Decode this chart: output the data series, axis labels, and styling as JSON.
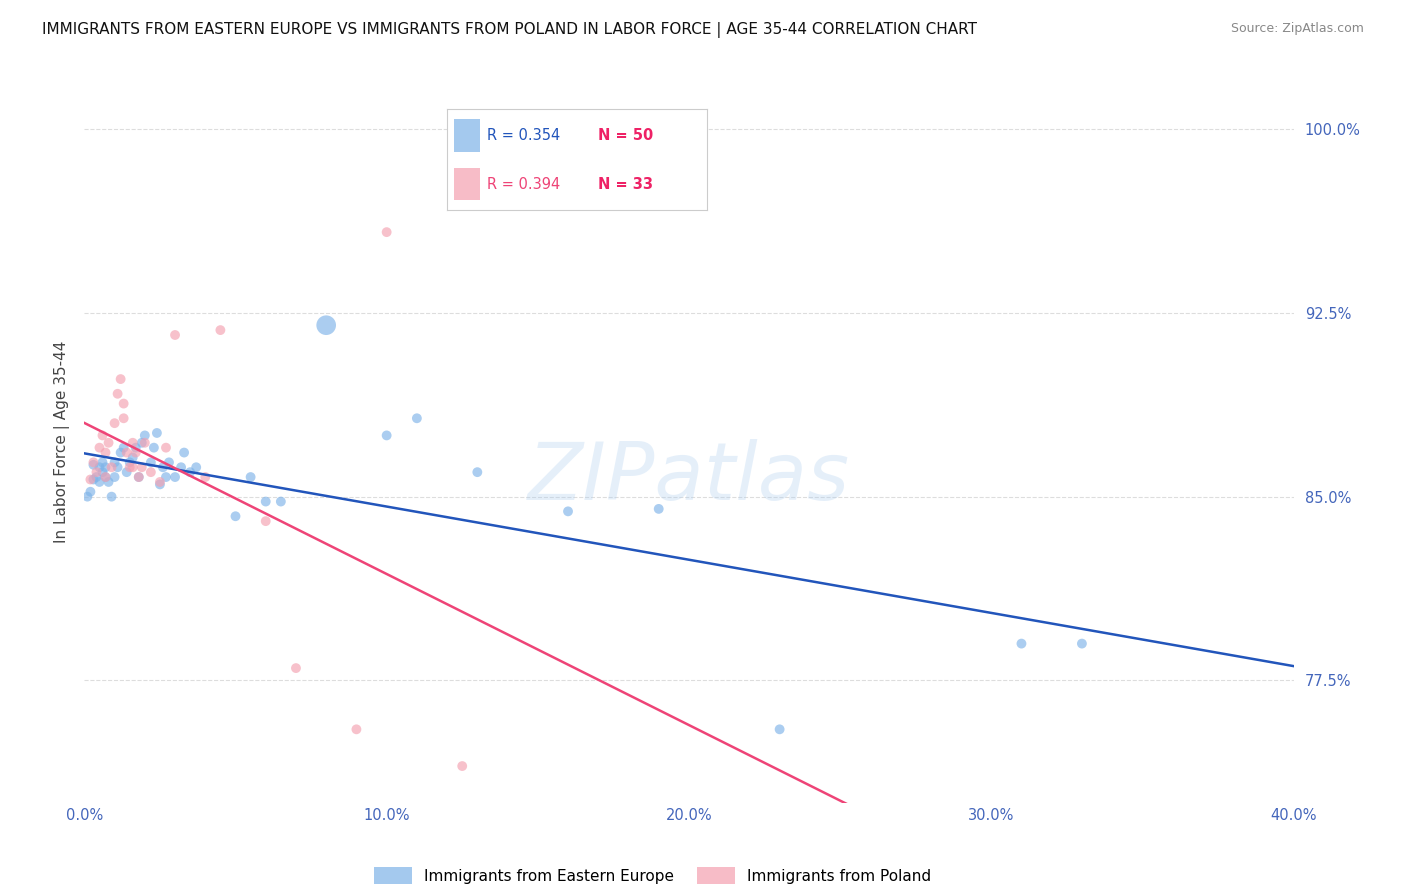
{
  "title": "IMMIGRANTS FROM EASTERN EUROPE VS IMMIGRANTS FROM POLAND IN LABOR FORCE | AGE 35-44 CORRELATION CHART",
  "source": "Source: ZipAtlas.com",
  "ylabel": "In Labor Force | Age 35-44",
  "xlim": [
    0.0,
    0.4
  ],
  "ylim": [
    0.725,
    1.02
  ],
  "xticks": [
    0.0,
    0.05,
    0.1,
    0.15,
    0.2,
    0.25,
    0.3,
    0.35,
    0.4
  ],
  "xticklabels": [
    "0.0%",
    "",
    "10.0%",
    "",
    "20.0%",
    "",
    "30.0%",
    "",
    "40.0%"
  ],
  "yticks": [
    0.775,
    0.85,
    0.925,
    1.0
  ],
  "yticklabels": [
    "77.5%",
    "85.0%",
    "92.5%",
    "100.0%"
  ],
  "blue_color": "#7EB3E8",
  "pink_color": "#F4A0B0",
  "blue_line_color": "#2255BB",
  "pink_line_color": "#EE4477",
  "R_blue": 0.354,
  "N_blue": 50,
  "R_pink": 0.394,
  "N_pink": 33,
  "blue_scatter": [
    [
      0.001,
      0.85
    ],
    [
      0.002,
      0.852
    ],
    [
      0.003,
      0.857
    ],
    [
      0.003,
      0.863
    ],
    [
      0.004,
      0.858
    ],
    [
      0.005,
      0.862
    ],
    [
      0.005,
      0.856
    ],
    [
      0.006,
      0.864
    ],
    [
      0.006,
      0.86
    ],
    [
      0.007,
      0.858
    ],
    [
      0.007,
      0.862
    ],
    [
      0.008,
      0.856
    ],
    [
      0.009,
      0.85
    ],
    [
      0.01,
      0.864
    ],
    [
      0.01,
      0.858
    ],
    [
      0.011,
      0.862
    ],
    [
      0.012,
      0.868
    ],
    [
      0.013,
      0.87
    ],
    [
      0.014,
      0.86
    ],
    [
      0.015,
      0.864
    ],
    [
      0.016,
      0.866
    ],
    [
      0.017,
      0.87
    ],
    [
      0.018,
      0.858
    ],
    [
      0.019,
      0.872
    ],
    [
      0.02,
      0.875
    ],
    [
      0.022,
      0.864
    ],
    [
      0.023,
      0.87
    ],
    [
      0.024,
      0.876
    ],
    [
      0.025,
      0.855
    ],
    [
      0.026,
      0.862
    ],
    [
      0.027,
      0.858
    ],
    [
      0.028,
      0.864
    ],
    [
      0.03,
      0.858
    ],
    [
      0.032,
      0.862
    ],
    [
      0.033,
      0.868
    ],
    [
      0.035,
      0.86
    ],
    [
      0.037,
      0.862
    ],
    [
      0.05,
      0.842
    ],
    [
      0.055,
      0.858
    ],
    [
      0.06,
      0.848
    ],
    [
      0.065,
      0.848
    ],
    [
      0.08,
      0.92
    ],
    [
      0.1,
      0.875
    ],
    [
      0.11,
      0.882
    ],
    [
      0.13,
      0.86
    ],
    [
      0.16,
      0.844
    ],
    [
      0.19,
      0.845
    ],
    [
      0.23,
      0.755
    ],
    [
      0.31,
      0.79
    ],
    [
      0.33,
      0.79
    ]
  ],
  "blue_sizes": [
    50,
    50,
    50,
    50,
    50,
    50,
    50,
    50,
    50,
    50,
    50,
    50,
    50,
    50,
    50,
    50,
    50,
    50,
    50,
    50,
    50,
    50,
    50,
    50,
    50,
    50,
    50,
    50,
    50,
    50,
    50,
    50,
    50,
    50,
    50,
    50,
    50,
    50,
    50,
    50,
    50,
    200,
    50,
    50,
    50,
    50,
    50,
    50,
    50,
    50
  ],
  "pink_scatter": [
    [
      0.002,
      0.857
    ],
    [
      0.003,
      0.864
    ],
    [
      0.004,
      0.86
    ],
    [
      0.005,
      0.87
    ],
    [
      0.006,
      0.875
    ],
    [
      0.007,
      0.858
    ],
    [
      0.007,
      0.868
    ],
    [
      0.008,
      0.872
    ],
    [
      0.009,
      0.862
    ],
    [
      0.01,
      0.88
    ],
    [
      0.011,
      0.892
    ],
    [
      0.012,
      0.898
    ],
    [
      0.013,
      0.888
    ],
    [
      0.013,
      0.882
    ],
    [
      0.014,
      0.868
    ],
    [
      0.015,
      0.862
    ],
    [
      0.016,
      0.872
    ],
    [
      0.016,
      0.862
    ],
    [
      0.017,
      0.868
    ],
    [
      0.018,
      0.858
    ],
    [
      0.019,
      0.862
    ],
    [
      0.02,
      0.872
    ],
    [
      0.022,
      0.86
    ],
    [
      0.025,
      0.856
    ],
    [
      0.027,
      0.87
    ],
    [
      0.03,
      0.916
    ],
    [
      0.04,
      0.858
    ],
    [
      0.045,
      0.918
    ],
    [
      0.06,
      0.84
    ],
    [
      0.07,
      0.78
    ],
    [
      0.09,
      0.755
    ],
    [
      0.1,
      0.958
    ],
    [
      0.125,
      0.74
    ]
  ],
  "pink_sizes": [
    50,
    50,
    50,
    50,
    50,
    50,
    50,
    50,
    50,
    50,
    50,
    50,
    50,
    50,
    50,
    50,
    50,
    50,
    50,
    50,
    50,
    50,
    50,
    50,
    50,
    50,
    50,
    50,
    50,
    50,
    50,
    50,
    50
  ],
  "watermark": "ZIPatlas",
  "grid_color": "#DDDDDD",
  "title_fontsize": 11,
  "label_fontsize": 11,
  "tick_fontsize": 10.5,
  "tick_color": "#4466BB",
  "ylabel_color": "#444444"
}
